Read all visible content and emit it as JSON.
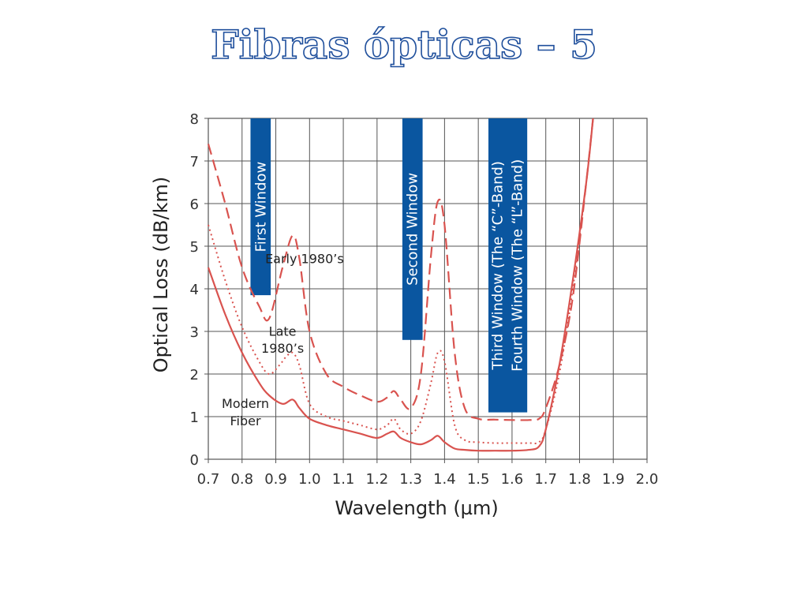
{
  "slide": {
    "title": "Fibras ópticas – 5"
  },
  "chart_data": {
    "type": "line",
    "xlabel": "Wavelength (µm)",
    "ylabel": "Optical Loss (dB/km)",
    "xlim": [
      0.7,
      2.0
    ],
    "ylim": [
      0,
      8
    ],
    "x_ticks": [
      "0.7",
      "0.8",
      "0.9",
      "1.0",
      "1.1",
      "1.2",
      "1.3",
      "1.4",
      "1.5",
      "1.6",
      "1.7",
      "1.8",
      "1.9",
      "2.0"
    ],
    "y_ticks": [
      "0",
      "1",
      "2",
      "3",
      "4",
      "5",
      "6",
      "7",
      "8"
    ],
    "grid": true,
    "line_color": "#d9534f",
    "window_color": "#0a56a0",
    "windows": [
      {
        "label": "First Window",
        "x_start": 0.825,
        "x_end": 0.885,
        "y_bottom": 3.85
      },
      {
        "label": "Second Window",
        "x_start": 1.275,
        "x_end": 1.335,
        "y_bottom": 2.8
      },
      {
        "label": "Third Window (The “C”-Band)",
        "x_start": 1.53,
        "x_end": 1.585,
        "y_bottom": 1.1
      },
      {
        "label": "Fourth Window (The “L”-Band)",
        "x_start": 1.585,
        "x_end": 1.645,
        "y_bottom": 1.1
      }
    ],
    "annotations": [
      {
        "text": "Early 1980’s",
        "x": 0.985,
        "y": 4.6
      },
      {
        "text": "Late",
        "x": 0.92,
        "y": 2.9
      },
      {
        "text": "1980’s",
        "x": 0.92,
        "y": 2.5
      },
      {
        "text": "Modern",
        "x": 0.81,
        "y": 1.2
      },
      {
        "text": "Fiber",
        "x": 0.81,
        "y": 0.8
      }
    ],
    "series": [
      {
        "style": "dashed",
        "x": [
          0.7,
          0.75,
          0.8,
          0.85,
          0.88,
          0.92,
          0.95,
          0.97,
          1.0,
          1.05,
          1.1,
          1.15,
          1.2,
          1.23,
          1.25,
          1.27,
          1.3,
          1.33,
          1.36,
          1.38,
          1.4,
          1.43,
          1.46,
          1.5,
          1.55,
          1.6,
          1.65,
          1.68,
          1.7,
          1.74,
          1.78,
          1.82,
          1.84
        ],
        "y": [
          7.4,
          6.0,
          4.5,
          3.6,
          3.3,
          4.5,
          5.25,
          4.7,
          3.0,
          2.0,
          1.7,
          1.5,
          1.35,
          1.45,
          1.6,
          1.4,
          1.2,
          2.0,
          4.8,
          6.05,
          5.5,
          2.5,
          1.2,
          0.95,
          0.93,
          0.92,
          0.92,
          0.95,
          1.2,
          2.2,
          3.8,
          6.5,
          8.0
        ]
      },
      {
        "style": "dotted",
        "x": [
          0.7,
          0.75,
          0.8,
          0.85,
          0.88,
          0.91,
          0.93,
          0.95,
          0.97,
          1.0,
          1.05,
          1.1,
          1.15,
          1.2,
          1.23,
          1.25,
          1.27,
          1.3,
          1.33,
          1.36,
          1.38,
          1.4,
          1.43,
          1.46,
          1.5,
          1.55,
          1.6,
          1.65,
          1.68,
          1.7,
          1.74,
          1.78,
          1.82
        ],
        "y": [
          5.5,
          4.2,
          3.1,
          2.3,
          2.0,
          2.2,
          2.4,
          2.5,
          2.2,
          1.3,
          1.0,
          0.9,
          0.8,
          0.7,
          0.8,
          0.95,
          0.7,
          0.6,
          0.9,
          1.8,
          2.5,
          2.3,
          0.8,
          0.45,
          0.4,
          0.38,
          0.38,
          0.38,
          0.4,
          0.7,
          2.0,
          4.0,
          6.5
        ]
      },
      {
        "style": "solid",
        "x": [
          0.7,
          0.75,
          0.8,
          0.85,
          0.88,
          0.92,
          0.95,
          0.97,
          1.0,
          1.05,
          1.1,
          1.15,
          1.2,
          1.23,
          1.25,
          1.27,
          1.3,
          1.33,
          1.36,
          1.38,
          1.4,
          1.43,
          1.46,
          1.5,
          1.55,
          1.6,
          1.65,
          1.68,
          1.7,
          1.74,
          1.78,
          1.82,
          1.84
        ],
        "y": [
          4.5,
          3.4,
          2.5,
          1.8,
          1.5,
          1.3,
          1.4,
          1.2,
          0.95,
          0.8,
          0.7,
          0.6,
          0.5,
          0.6,
          0.65,
          0.5,
          0.4,
          0.35,
          0.45,
          0.55,
          0.4,
          0.25,
          0.22,
          0.2,
          0.2,
          0.2,
          0.22,
          0.3,
          0.7,
          2.2,
          4.2,
          6.5,
          8.0
        ]
      }
    ]
  }
}
